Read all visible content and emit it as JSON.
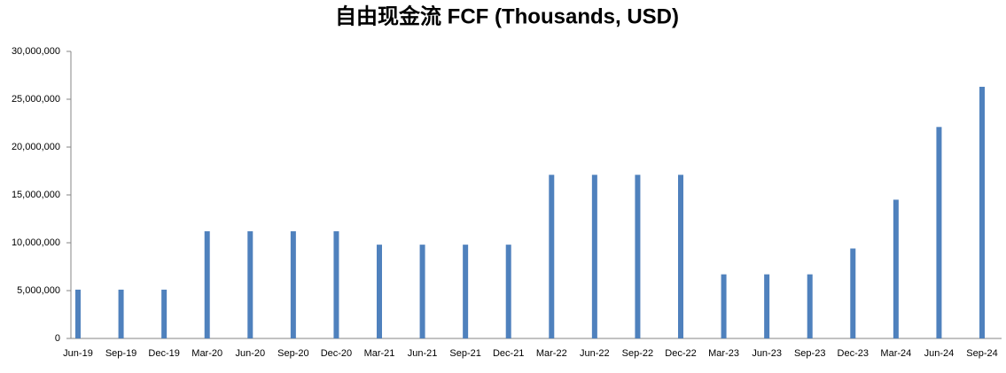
{
  "chart_data": {
    "type": "bar",
    "title": "自由现金流 FCF (Thousands, USD)",
    "categories": [
      "Jun-19",
      "Sep-19",
      "Dec-19",
      "Mar-20",
      "Jun-20",
      "Sep-20",
      "Dec-20",
      "Mar-21",
      "Jun-21",
      "Sep-21",
      "Dec-21",
      "Mar-22",
      "Jun-22",
      "Sep-22",
      "Dec-22",
      "Mar-23",
      "Jun-23",
      "Sep-23",
      "Dec-23",
      "Mar-24",
      "Jun-24",
      "Sep-24"
    ],
    "values": [
      5100000,
      5100000,
      5100000,
      11200000,
      11200000,
      11200000,
      11200000,
      9800000,
      9800000,
      9800000,
      9800000,
      17100000,
      17100000,
      17100000,
      17100000,
      6700000,
      6700000,
      6700000,
      9400000,
      14500000,
      22100000,
      26300000
    ],
    "color": "#4f81bd",
    "ylim": [
      0,
      30000000
    ],
    "yticks": [
      0,
      {
        "value": 5000000,
        "label": "5,000,000"
      },
      {
        "value": 10000000,
        "label": "10,000,000"
      },
      {
        "value": 15000000,
        "label": "15,000,000"
      },
      {
        "value": 20000000,
        "label": "20,000,000"
      },
      {
        "value": 25000000,
        "label": "25,000,000"
      },
      {
        "value": 30000000,
        "label": "30,000,000"
      }
    ],
    "grid": false
  }
}
